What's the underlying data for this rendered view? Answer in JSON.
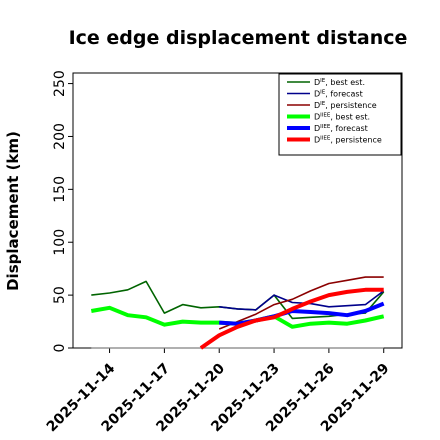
{
  "chart_data": {
    "type": "line",
    "title": "Ice edge displacement distance",
    "xlabel": "",
    "ylabel": "Displacement (km)",
    "ylim": [
      0,
      260
    ],
    "yticks": [
      0,
      50,
      100,
      150,
      200,
      250
    ],
    "xlim": [
      "2025-11-12",
      "2025-11-30"
    ],
    "xticks": [
      "2025-11-14",
      "2025-11-17",
      "2025-11-20",
      "2025-11-23",
      "2025-11-26",
      "2025-11-29"
    ],
    "highlight_tick": "2025-11-20",
    "highlight_color": "#228B22",
    "grid": false,
    "legend_position": "top-right",
    "reference_line": {
      "y": 0,
      "x_start": "2025-11-13",
      "x_end": "2025-11-29",
      "color": "#808080"
    },
    "series": [
      {
        "name": "D^IE, best est.",
        "legend": {
          "base": "D",
          "sup": "IE",
          "suffix": ", best est."
        },
        "color": "#006400",
        "width": 1.6,
        "x": [
          "2025-11-13",
          "2025-11-14",
          "2025-11-15",
          "2025-11-16",
          "2025-11-17",
          "2025-11-18",
          "2025-11-19",
          "2025-11-20",
          "2025-11-21",
          "2025-11-22",
          "2025-11-23",
          "2025-11-24",
          "2025-11-25",
          "2025-11-26",
          "2025-11-27",
          "2025-11-28",
          "2025-11-29"
        ],
        "values": [
          50,
          52,
          55,
          63,
          33,
          41,
          38,
          39,
          37,
          36,
          50,
          28,
          29,
          30,
          32,
          33,
          53
        ]
      },
      {
        "name": "D^IE, forecast",
        "legend": {
          "base": "D",
          "sup": "IE",
          "suffix": ", forecast"
        },
        "color": "#00008B",
        "width": 1.6,
        "x": [
          "2025-11-20",
          "2025-11-21",
          "2025-11-22",
          "2025-11-23",
          "2025-11-24",
          "2025-11-25",
          "2025-11-26",
          "2025-11-27",
          "2025-11-28",
          "2025-11-29"
        ],
        "values": [
          39,
          37,
          36,
          50,
          43,
          42,
          39,
          40,
          41,
          54
        ]
      },
      {
        "name": "D^IE, persistence",
        "legend": {
          "base": "D",
          "sup": "IE",
          "suffix": ", persistence"
        },
        "color": "#8B0000",
        "width": 1.6,
        "x": [
          "2025-11-20",
          "2025-11-21",
          "2025-11-22",
          "2025-11-23",
          "2025-11-24",
          "2025-11-25",
          "2025-11-26",
          "2025-11-27",
          "2025-11-28",
          "2025-11-29"
        ],
        "values": [
          18,
          25,
          32,
          41,
          46,
          54,
          61,
          64,
          67,
          67
        ]
      },
      {
        "name": "D^IIEE, best est.",
        "legend": {
          "base": "D",
          "sup": "IIEE",
          "suffix": ", best est."
        },
        "color": "#00FF00",
        "width": 4,
        "x": [
          "2025-11-13",
          "2025-11-14",
          "2025-11-15",
          "2025-11-16",
          "2025-11-17",
          "2025-11-18",
          "2025-11-19",
          "2025-11-20",
          "2025-11-21",
          "2025-11-22",
          "2025-11-23",
          "2025-11-24",
          "2025-11-25",
          "2025-11-26",
          "2025-11-27",
          "2025-11-28",
          "2025-11-29"
        ],
        "values": [
          35,
          38,
          31,
          29,
          22,
          25,
          24,
          24,
          23,
          26,
          30,
          20,
          23,
          24,
          23,
          26,
          30
        ]
      },
      {
        "name": "D^IIEE, forecast",
        "legend": {
          "base": "D",
          "sup": "IIEE",
          "suffix": ", forecast"
        },
        "color": "#0000FF",
        "width": 4,
        "x": [
          "2025-11-20",
          "2025-11-21",
          "2025-11-22",
          "2025-11-23",
          "2025-11-24",
          "2025-11-25",
          "2025-11-26",
          "2025-11-27",
          "2025-11-28",
          "2025-11-29"
        ],
        "values": [
          24,
          23,
          26,
          30,
          35,
          34,
          33,
          31,
          35,
          42
        ]
      },
      {
        "name": "D^IIEE, persistence",
        "legend": {
          "base": "D",
          "sup": "IIEE",
          "suffix": ", persistence"
        },
        "color": "#FF0000",
        "width": 4,
        "x": [
          "2025-11-19",
          "2025-11-20",
          "2025-11-21",
          "2025-11-22",
          "2025-11-23",
          "2025-11-24",
          "2025-11-25",
          "2025-11-26",
          "2025-11-27",
          "2025-11-28",
          "2025-11-29"
        ],
        "values": [
          0,
          12,
          20,
          26,
          29,
          37,
          44,
          50,
          53,
          55,
          55
        ]
      }
    ]
  }
}
